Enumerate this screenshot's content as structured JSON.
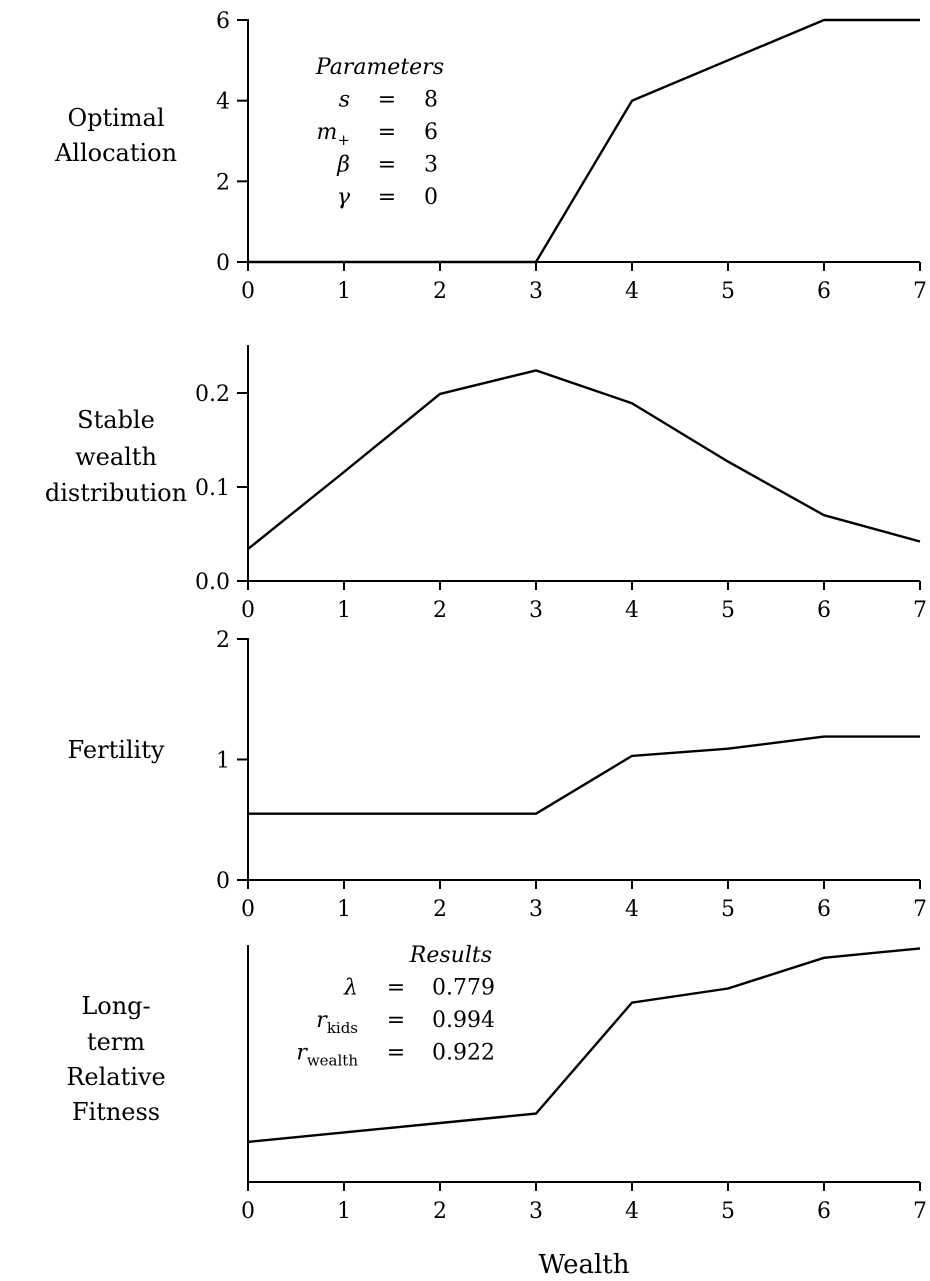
{
  "chart_data": [
    {
      "type": "line",
      "ylabel": [
        "Optimal",
        "Allocation"
      ],
      "x": [
        0,
        1,
        2,
        3,
        4,
        5,
        6,
        7
      ],
      "xticks": [
        "0",
        "1",
        "2",
        "3",
        "4",
        "5",
        "6",
        "7"
      ],
      "xlim": [
        0,
        7
      ],
      "yticks": [
        "0",
        "2",
        "4",
        "6"
      ],
      "ytick_values": [
        0,
        2,
        4,
        6
      ],
      "ylim": [
        0,
        6
      ],
      "values": [
        0,
        0,
        0,
        0,
        4,
        5,
        6,
        6
      ],
      "annotation": {
        "title": "Parameters",
        "rows": [
          {
            "name": "s",
            "eq": "=",
            "value": "8"
          },
          {
            "name": "m",
            "sub": "+",
            "eq": "=",
            "value": "6"
          },
          {
            "name": "β",
            "eq": "=",
            "value": "3"
          },
          {
            "name": "γ",
            "eq": "=",
            "value": "0"
          }
        ]
      }
    },
    {
      "type": "line",
      "ylabel": [
        "Stable",
        "wealth",
        "distribution"
      ],
      "x": [
        0,
        1,
        2,
        3,
        4,
        5,
        6,
        7
      ],
      "xticks": [
        "0",
        "1",
        "2",
        "3",
        "4",
        "5",
        "6",
        "7"
      ],
      "xlim": [
        0,
        7
      ],
      "yticks": [
        "0.0",
        "0.1",
        "0.2"
      ],
      "ytick_values": [
        0,
        0.1,
        0.2
      ],
      "ylim": [
        0,
        0.25
      ],
      "values": [
        0.034,
        0.116,
        0.199,
        0.224,
        0.189,
        0.127,
        0.07,
        0.042
      ]
    },
    {
      "type": "line",
      "ylabel": [
        "Fertility"
      ],
      "x": [
        0,
        1,
        2,
        3,
        4,
        5,
        6,
        7
      ],
      "xticks": [
        "0",
        "1",
        "2",
        "3",
        "4",
        "5",
        "6",
        "7"
      ],
      "xlim": [
        0,
        7
      ],
      "yticks": [
        "0",
        "1",
        "2"
      ],
      "ytick_values": [
        0,
        1,
        2
      ],
      "ylim": [
        0,
        2
      ],
      "values": [
        0.55,
        0.55,
        0.55,
        0.55,
        1.03,
        1.09,
        1.19,
        1.19
      ]
    },
    {
      "type": "line",
      "ylabel": [
        "Long-",
        "term",
        "Relative",
        "Fitness"
      ],
      "x": [
        0,
        1,
        2,
        3,
        4,
        5,
        6,
        7
      ],
      "xticks": [
        "0",
        "1",
        "2",
        "3",
        "4",
        "5",
        "6",
        "7"
      ],
      "xlim": [
        0,
        7
      ],
      "yticks": [],
      "ytick_values": [],
      "ylim": [
        0,
        1
      ],
      "values": [
        0.17,
        0.21,
        0.25,
        0.29,
        0.76,
        0.82,
        0.95,
        0.99
      ],
      "xlabel": "Wealth",
      "annotation": {
        "title": "Results",
        "rows": [
          {
            "name": "λ",
            "eq": "=",
            "value": "0.779"
          },
          {
            "name": "r",
            "sub": "kids",
            "eq": "=",
            "value": "0.994"
          },
          {
            "name": "r",
            "sub": "wealth",
            "eq": "=",
            "value": "0.922"
          }
        ]
      }
    }
  ]
}
